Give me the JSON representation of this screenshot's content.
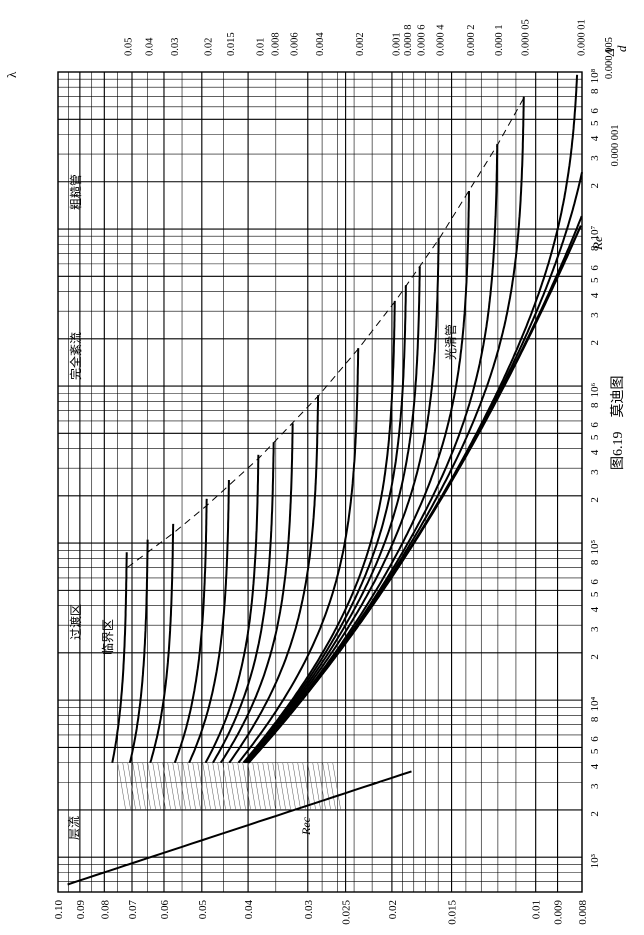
{
  "chart_data": {
    "type": "line",
    "figure_caption": "图6.19　莫迪图",
    "x_label": "Re",
    "y_label": "λ",
    "rr_label_num": "Δ",
    "rr_label_den": "d",
    "x_scale": "log",
    "y_scale": "log",
    "x_range": [
      600,
      100000000
    ],
    "y_range": [
      0.008,
      0.1
    ],
    "x_ticks": [
      {
        "v": 1000,
        "t": "10³"
      },
      {
        "v": 2000,
        "t": "2"
      },
      {
        "v": 3000,
        "t": "3"
      },
      {
        "v": 4000,
        "t": "4"
      },
      {
        "v": 5000,
        "t": "5"
      },
      {
        "v": 6000,
        "t": "6"
      },
      {
        "v": 8000,
        "t": "8"
      },
      {
        "v": 10000,
        "t": "10⁴"
      },
      {
        "v": 20000,
        "t": "2"
      },
      {
        "v": 30000,
        "t": "3"
      },
      {
        "v": 40000,
        "t": "4"
      },
      {
        "v": 50000,
        "t": "5"
      },
      {
        "v": 60000,
        "t": "6"
      },
      {
        "v": 80000,
        "t": "8"
      },
      {
        "v": 100000,
        "t": "10⁵"
      },
      {
        "v": 200000,
        "t": "2"
      },
      {
        "v": 300000,
        "t": "3"
      },
      {
        "v": 400000,
        "t": "4"
      },
      {
        "v": 500000,
        "t": "5"
      },
      {
        "v": 600000,
        "t": "6"
      },
      {
        "v": 800000,
        "t": "8"
      },
      {
        "v": 1000000,
        "t": "10⁶"
      },
      {
        "v": 2000000,
        "t": "2"
      },
      {
        "v": 3000000,
        "t": "3"
      },
      {
        "v": 4000000,
        "t": "4"
      },
      {
        "v": 5000000,
        "t": "5"
      },
      {
        "v": 6000000,
        "t": "6"
      },
      {
        "v": 8000000,
        "t": "8"
      },
      {
        "v": 10000000,
        "t": "10⁷"
      },
      {
        "v": 20000000,
        "t": "2"
      },
      {
        "v": 30000000,
        "t": "3"
      },
      {
        "v": 40000000,
        "t": "4"
      },
      {
        "v": 50000000,
        "t": "5"
      },
      {
        "v": 60000000,
        "t": "6"
      },
      {
        "v": 80000000,
        "t": "8"
      },
      {
        "v": 100000000,
        "t": "10⁸"
      }
    ],
    "y_ticks": [
      {
        "v": 0.1,
        "t": "0.10"
      },
      {
        "v": 0.09,
        "t": "0.09"
      },
      {
        "v": 0.08,
        "t": "0.08"
      },
      {
        "v": 0.07,
        "t": "0.07"
      },
      {
        "v": 0.06,
        "t": "0.06"
      },
      {
        "v": 0.05,
        "t": "0.05"
      },
      {
        "v": 0.04,
        "t": "0.04"
      },
      {
        "v": 0.03,
        "t": "0.03"
      },
      {
        "v": 0.025,
        "t": "0.025"
      },
      {
        "v": 0.02,
        "t": "0.02"
      },
      {
        "v": 0.015,
        "t": "0.015"
      },
      {
        "v": 0.01,
        "t": "0.01"
      },
      {
        "v": 0.009,
        "t": "0.009"
      },
      {
        "v": 0.008,
        "t": "0.008"
      }
    ],
    "roughness_labels": [
      {
        "rr": 0.05,
        "t": "0.05"
      },
      {
        "rr": 0.04,
        "t": "0.04"
      },
      {
        "rr": 0.03,
        "t": "0.03"
      },
      {
        "rr": 0.02,
        "t": "0.02"
      },
      {
        "rr": 0.015,
        "t": "0.015"
      },
      {
        "rr": 0.01,
        "t": "0.01"
      },
      {
        "rr": 0.008,
        "t": "0.008"
      },
      {
        "rr": 0.006,
        "t": "0.006"
      },
      {
        "rr": 0.004,
        "t": "0.004"
      },
      {
        "rr": 0.002,
        "t": "0.002"
      },
      {
        "rr": 0.001,
        "t": "0.001"
      },
      {
        "rr": 0.0008,
        "t": "0.000 8"
      },
      {
        "rr": 0.0006,
        "t": "0.000 6"
      },
      {
        "rr": 0.0004,
        "t": "0.000 4"
      },
      {
        "rr": 0.0002,
        "t": "0.000 2"
      },
      {
        "rr": 0.0001,
        "t": "0.000 1"
      },
      {
        "rr": 5e-05,
        "t": "0.000 05"
      },
      {
        "rr": 1e-05,
        "t": "0.000 01"
      },
      {
        "rr": 5e-06,
        "t": "0.000 005"
      },
      {
        "rr": 1e-06,
        "t": "0.000 001"
      }
    ],
    "region_labels": {
      "laminar": "层流",
      "critical": "临界区",
      "transition": "过渡区",
      "complete_turbulence": "完全紊流",
      "rough_pipe": "粗糙管",
      "smooth_pipe": "光滑管",
      "critical_re": "Rec"
    }
  }
}
